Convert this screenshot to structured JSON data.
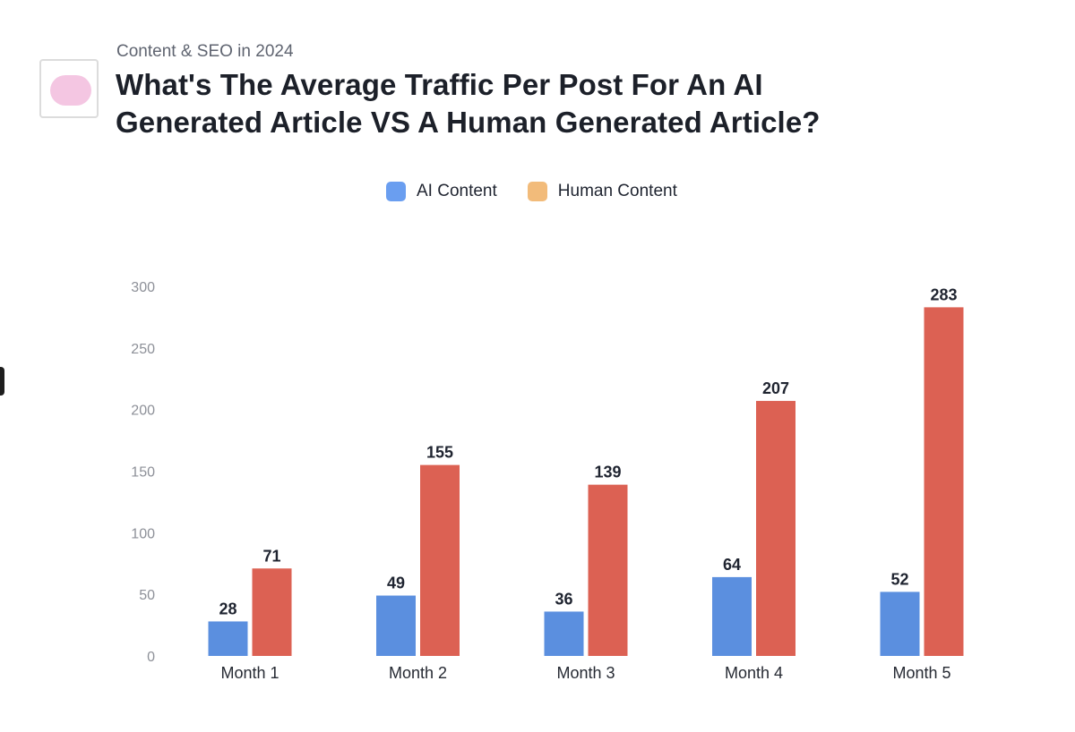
{
  "header": {
    "subtitle": "Content & SEO in 2024",
    "title": "What's The Average Traffic Per Post For An AI Generated Article VS A Human Generated Article?",
    "logo_icon": "pink-blob-logo-icon"
  },
  "legend": [
    {
      "label": "AI Content",
      "color": "#6a9ef0"
    },
    {
      "label": "Human Content",
      "color": "#f2bb7a"
    }
  ],
  "colors": {
    "ai_bar": "#5b8fdf",
    "human_bar": "#dc6153"
  },
  "chart_data": {
    "type": "bar",
    "title": "What's The Average Traffic Per Post For An AI Generated Article VS A Human Generated Article?",
    "subtitle": "Content & SEO in 2024",
    "xlabel": "",
    "ylabel": "",
    "categories": [
      "Month 1",
      "Month 2",
      "Month 3",
      "Month 4",
      "Month 5"
    ],
    "series": [
      {
        "name": "AI Content",
        "values": [
          28,
          49,
          36,
          64,
          52
        ]
      },
      {
        "name": "Human Content",
        "values": [
          71,
          155,
          139,
          207,
          283
        ]
      }
    ],
    "ylim": [
      0,
      300
    ],
    "yticks": [
      0,
      50,
      100,
      150,
      200,
      250,
      300
    ],
    "grid": false,
    "legend_position": "top-center",
    "data_labels": true
  }
}
